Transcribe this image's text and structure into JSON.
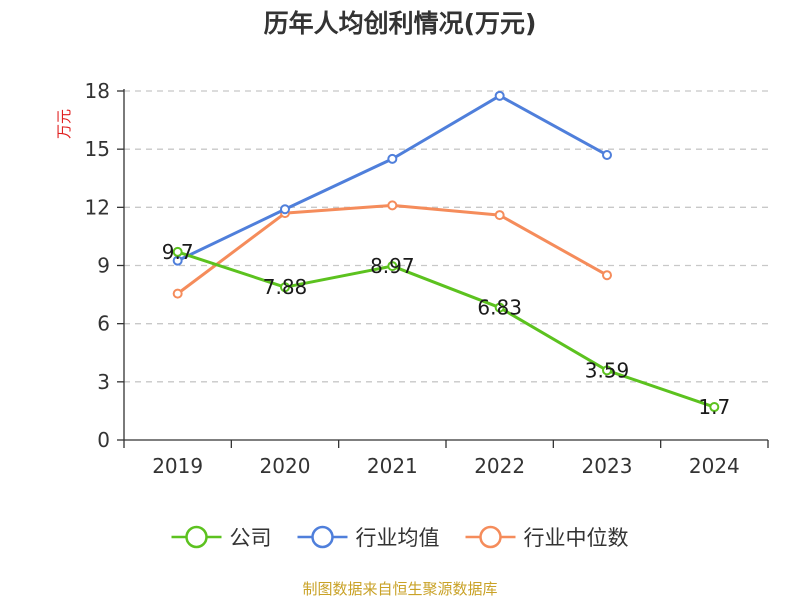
{
  "chart_data": {
    "type": "line",
    "title": "历年人均创利情况(万元)",
    "ylabel": "万元",
    "ylim": [
      0,
      18
    ],
    "yticks": [
      0,
      3,
      6,
      9,
      12,
      15,
      18
    ],
    "categories": [
      "2019",
      "2020",
      "2021",
      "2022",
      "2023",
      "2024"
    ],
    "grid": true,
    "legend_position": "bottom",
    "series": [
      {
        "name": "公司",
        "color": "#5cc21f",
        "values": [
          9.7,
          7.88,
          8.97,
          6.83,
          3.59,
          1.7
        ],
        "labels": [
          "9.7",
          "7.88",
          "8.97",
          "6.83",
          "3.59",
          "1.7"
        ]
      },
      {
        "name": "行业均值",
        "color": "#4f7fdb",
        "values": [
          9.25,
          11.9,
          14.5,
          17.75,
          14.7,
          null
        ],
        "labels": []
      },
      {
        "name": "行业中位数",
        "color": "#f58c5b",
        "values": [
          7.55,
          11.7,
          12.1,
          11.6,
          8.5,
          null
        ],
        "labels": []
      }
    ]
  },
  "source": "制图数据来自恒生聚源数据库"
}
